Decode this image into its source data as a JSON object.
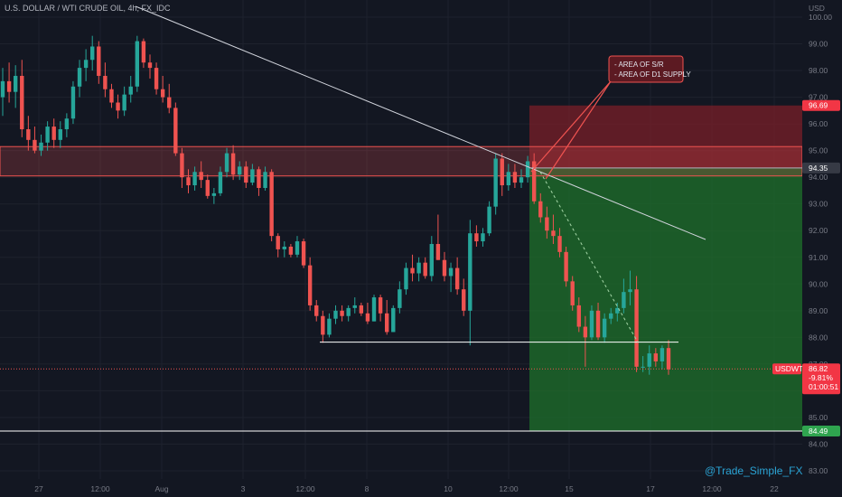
{
  "chart_title": "U.S. DOLLAR / WTI CRUDE OIL, 4h, FX_IDC",
  "currency_label": "USD",
  "watermark": "@Trade_Simple_FX",
  "annotation": {
    "lines": [
      "- AREA OF S/R",
      "- AREA OF D1 SUPPLY"
    ]
  },
  "price_tags": {
    "stop": "96.69",
    "entry": "94.35",
    "target": "84.49",
    "current_symbol": "USDWTI",
    "current_price": "86.82",
    "current_change": "-9.81%",
    "current_timer": "01:00:51"
  },
  "colors": {
    "background": "#131722",
    "up": "#26a69a",
    "down": "#ef5350",
    "stop_zone": "#7a1f28",
    "target_zone": "#1e6b2a"
  },
  "chart_data": {
    "type": "candlestick",
    "y_ticks": [
      "83.00",
      "84.00",
      "85.00",
      "86.00",
      "87.00",
      "88.00",
      "89.00",
      "90.00",
      "91.00",
      "92.00",
      "93.00",
      "94.00",
      "95.00",
      "96.00",
      "97.00",
      "98.00",
      "99.00",
      "100.00"
    ],
    "x_ticks": [
      "27",
      "12:00",
      "Aug",
      "3",
      "12:00",
      "8",
      "10",
      "12:00",
      "15",
      "17",
      "12:00",
      "22"
    ],
    "ylim": [
      82.6,
      100.2
    ],
    "levels": {
      "stop": 96.69,
      "entry": 94.35,
      "target": 84.49,
      "current": 86.82,
      "sr_zone": [
        94.05,
        95.15
      ],
      "support": 87.82
    },
    "candles": [
      [
        97.0,
        98.1,
        96.3,
        97.6
      ],
      [
        97.6,
        98.3,
        96.8,
        97.2
      ],
      [
        97.2,
        98.2,
        96.6,
        97.8
      ],
      [
        97.8,
        98.4,
        95.5,
        95.8
      ],
      [
        95.8,
        96.3,
        95.0,
        95.4
      ],
      [
        95.4,
        95.9,
        94.9,
        95.0
      ],
      [
        95.0,
        95.6,
        94.8,
        95.3
      ],
      [
        95.3,
        96.1,
        95.0,
        95.9
      ],
      [
        95.9,
        96.2,
        95.1,
        95.4
      ],
      [
        95.4,
        96.1,
        95.1,
        95.8
      ],
      [
        95.8,
        96.4,
        95.5,
        96.2
      ],
      [
        96.2,
        97.6,
        96.0,
        97.4
      ],
      [
        97.4,
        98.4,
        97.0,
        98.1
      ],
      [
        98.1,
        98.8,
        97.6,
        98.4
      ],
      [
        98.4,
        99.3,
        98.0,
        98.9
      ],
      [
        98.9,
        99.1,
        97.5,
        97.8
      ],
      [
        97.8,
        98.3,
        97.0,
        97.3
      ],
      [
        97.3,
        97.5,
        96.6,
        96.8
      ],
      [
        96.8,
        97.1,
        96.2,
        96.5
      ],
      [
        96.5,
        97.4,
        96.3,
        97.1
      ],
      [
        97.1,
        97.8,
        96.8,
        97.4
      ],
      [
        97.4,
        99.3,
        97.2,
        99.1
      ],
      [
        99.1,
        99.2,
        98.1,
        98.3
      ],
      [
        98.3,
        98.6,
        97.7,
        98.1
      ],
      [
        98.1,
        98.3,
        97.1,
        97.3
      ],
      [
        97.3,
        97.8,
        96.8,
        97.0
      ],
      [
        97.0,
        97.5,
        96.4,
        96.6
      ],
      [
        96.6,
        96.8,
        94.8,
        94.9
      ],
      [
        94.9,
        95.1,
        93.6,
        94.0
      ],
      [
        94.0,
        94.3,
        93.4,
        93.7
      ],
      [
        93.7,
        94.4,
        93.5,
        94.2
      ],
      [
        94.2,
        94.6,
        93.6,
        93.9
      ],
      [
        93.9,
        94.1,
        93.2,
        93.3
      ],
      [
        93.3,
        93.6,
        93.0,
        93.4
      ],
      [
        93.4,
        94.4,
        93.3,
        94.2
      ],
      [
        94.2,
        95.1,
        94.0,
        94.9
      ],
      [
        94.9,
        95.2,
        93.9,
        94.1
      ],
      [
        94.1,
        94.6,
        93.9,
        94.4
      ],
      [
        94.4,
        94.6,
        93.6,
        93.8
      ],
      [
        93.8,
        94.5,
        93.7,
        94.3
      ],
      [
        94.3,
        94.4,
        93.3,
        93.6
      ],
      [
        93.6,
        94.4,
        93.5,
        94.2
      ],
      [
        94.2,
        94.3,
        91.6,
        91.8
      ],
      [
        91.8,
        91.9,
        91.0,
        91.3
      ],
      [
        91.3,
        91.6,
        91.0,
        91.4
      ],
      [
        91.4,
        91.5,
        91.0,
        91.1
      ],
      [
        91.1,
        91.8,
        91.0,
        91.6
      ],
      [
        91.6,
        91.7,
        90.6,
        90.7
      ],
      [
        90.7,
        91.0,
        89.0,
        89.2
      ],
      [
        89.2,
        89.4,
        88.6,
        88.8
      ],
      [
        88.8,
        89.0,
        87.8,
        88.1
      ],
      [
        88.1,
        88.9,
        88.0,
        88.7
      ],
      [
        88.7,
        89.2,
        88.5,
        89.0
      ],
      [
        89.0,
        89.2,
        88.6,
        88.8
      ],
      [
        88.8,
        89.2,
        88.6,
        89.1
      ],
      [
        89.1,
        89.5,
        88.9,
        89.2
      ],
      [
        89.2,
        89.3,
        88.8,
        88.9
      ],
      [
        88.9,
        89.3,
        88.5,
        88.6
      ],
      [
        88.6,
        89.6,
        88.6,
        89.5
      ],
      [
        89.5,
        89.6,
        88.6,
        88.9
      ],
      [
        88.9,
        89.4,
        88.1,
        88.2
      ],
      [
        88.2,
        89.2,
        88.2,
        89.1
      ],
      [
        89.1,
        90.1,
        88.9,
        89.8
      ],
      [
        89.8,
        90.8,
        89.6,
        90.6
      ],
      [
        90.6,
        91.1,
        90.1,
        90.4
      ],
      [
        90.4,
        91.0,
        90.1,
        90.8
      ],
      [
        90.8,
        91.0,
        90.2,
        90.3
      ],
      [
        90.3,
        91.8,
        90.1,
        91.5
      ],
      [
        91.5,
        92.6,
        90.9,
        90.9
      ],
      [
        90.9,
        91.2,
        90.1,
        90.3
      ],
      [
        90.3,
        90.8,
        89.7,
        90.6
      ],
      [
        90.6,
        91.0,
        89.6,
        89.8
      ],
      [
        89.8,
        90.2,
        88.8,
        89.0
      ],
      [
        89.0,
        92.4,
        87.7,
        91.9
      ],
      [
        91.9,
        92.2,
        91.4,
        91.6
      ],
      [
        91.6,
        92.1,
        91.4,
        91.9
      ],
      [
        91.9,
        93.1,
        91.8,
        92.9
      ],
      [
        92.9,
        94.9,
        92.6,
        94.7
      ],
      [
        94.7,
        94.9,
        93.3,
        93.7
      ],
      [
        93.7,
        94.5,
        93.5,
        94.2
      ],
      [
        94.2,
        94.5,
        93.6,
        93.8
      ],
      [
        93.8,
        94.3,
        93.6,
        94.0
      ],
      [
        94.0,
        94.8,
        93.8,
        94.6
      ],
      [
        94.6,
        94.9,
        93.0,
        93.1
      ],
      [
        93.1,
        93.4,
        92.3,
        92.5
      ],
      [
        92.5,
        92.9,
        91.7,
        92.0
      ],
      [
        92.0,
        92.6,
        91.5,
        91.8
      ],
      [
        91.8,
        92.1,
        91.0,
        91.2
      ],
      [
        91.2,
        91.4,
        89.9,
        90.1
      ],
      [
        90.1,
        90.3,
        89.0,
        89.2
      ],
      [
        89.2,
        89.5,
        88.2,
        88.4
      ],
      [
        88.4,
        88.8,
        86.9,
        88.0
      ],
      [
        88.0,
        89.2,
        87.9,
        89.0
      ],
      [
        89.0,
        89.3,
        87.9,
        88.0
      ],
      [
        88.0,
        88.9,
        87.8,
        88.7
      ],
      [
        88.7,
        89.1,
        88.5,
        88.9
      ],
      [
        88.9,
        89.3,
        88.6,
        89.1
      ],
      [
        89.1,
        90.2,
        88.9,
        89.7
      ],
      [
        89.7,
        90.5,
        89.2,
        89.8
      ],
      [
        89.8,
        90.3,
        86.7,
        86.9
      ],
      [
        86.9,
        87.3,
        86.7,
        86.9
      ],
      [
        86.9,
        87.7,
        86.6,
        87.4
      ],
      [
        87.4,
        87.6,
        86.9,
        87.1
      ],
      [
        87.1,
        87.7,
        86.8,
        87.6
      ],
      [
        87.6,
        87.9,
        86.6,
        86.8
      ]
    ]
  }
}
